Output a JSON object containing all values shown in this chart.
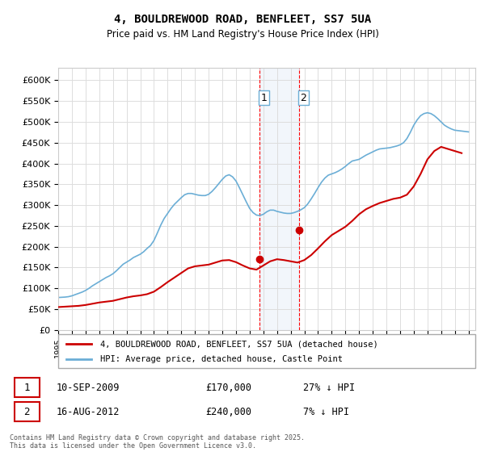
{
  "title": "4, BOULDREWOOD ROAD, BENFLEET, SS7 5UA",
  "subtitle": "Price paid vs. HM Land Registry's House Price Index (HPI)",
  "ylabel_values": [
    0,
    50000,
    100000,
    150000,
    200000,
    250000,
    300000,
    350000,
    400000,
    450000,
    500000,
    550000,
    600000
  ],
  "ylim": [
    0,
    630000
  ],
  "xlim_start": 1995.0,
  "xlim_end": 2025.5,
  "legend_line1": "4, BOULDREWOOD ROAD, BENFLEET, SS7 5UA (detached house)",
  "legend_line2": "HPI: Average price, detached house, Castle Point",
  "hpi_color": "#6baed6",
  "price_color": "#cc0000",
  "marker1_date": 2009.7,
  "marker1_price": 170000,
  "marker1_label": "1",
  "marker1_text": "10-SEP-2009",
  "marker1_price_text": "£170,000",
  "marker1_hpi_text": "27% ↓ HPI",
  "marker2_date": 2012.6,
  "marker2_price": 240000,
  "marker2_label": "2",
  "marker2_text": "16-AUG-2012",
  "marker2_price_text": "£240,000",
  "marker2_hpi_text": "7% ↓ HPI",
  "shade_x1": 2009.7,
  "shade_x2": 2012.6,
  "footer": "Contains HM Land Registry data © Crown copyright and database right 2025.\nThis data is licensed under the Open Government Licence v3.0.",
  "hpi_data": {
    "years": [
      1995.0,
      1995.25,
      1995.5,
      1995.75,
      1996.0,
      1996.25,
      1996.5,
      1996.75,
      1997.0,
      1997.25,
      1997.5,
      1997.75,
      1998.0,
      1998.25,
      1998.5,
      1998.75,
      1999.0,
      1999.25,
      1999.5,
      1999.75,
      2000.0,
      2000.25,
      2000.5,
      2000.75,
      2001.0,
      2001.25,
      2001.5,
      2001.75,
      2002.0,
      2002.25,
      2002.5,
      2002.75,
      2003.0,
      2003.25,
      2003.5,
      2003.75,
      2004.0,
      2004.25,
      2004.5,
      2004.75,
      2005.0,
      2005.25,
      2005.5,
      2005.75,
      2006.0,
      2006.25,
      2006.5,
      2006.75,
      2007.0,
      2007.25,
      2007.5,
      2007.75,
      2008.0,
      2008.25,
      2008.5,
      2008.75,
      2009.0,
      2009.25,
      2009.5,
      2009.75,
      2010.0,
      2010.25,
      2010.5,
      2010.75,
      2011.0,
      2011.25,
      2011.5,
      2011.75,
      2012.0,
      2012.25,
      2012.5,
      2012.75,
      2013.0,
      2013.25,
      2013.5,
      2013.75,
      2014.0,
      2014.25,
      2014.5,
      2014.75,
      2015.0,
      2015.25,
      2015.5,
      2015.75,
      2016.0,
      2016.25,
      2016.5,
      2016.75,
      2017.0,
      2017.25,
      2017.5,
      2017.75,
      2018.0,
      2018.25,
      2018.5,
      2018.75,
      2019.0,
      2019.25,
      2019.5,
      2019.75,
      2020.0,
      2020.25,
      2020.5,
      2020.75,
      2021.0,
      2021.25,
      2021.5,
      2021.75,
      2022.0,
      2022.25,
      2022.5,
      2022.75,
      2023.0,
      2023.25,
      2023.5,
      2023.75,
      2024.0,
      2024.25,
      2024.5,
      2024.75,
      2025.0
    ],
    "values": [
      78000,
      78500,
      79000,
      80000,
      82000,
      85000,
      88000,
      91000,
      95000,
      100000,
      106000,
      111000,
      116000,
      121000,
      126000,
      130000,
      135000,
      142000,
      150000,
      158000,
      163000,
      168000,
      174000,
      178000,
      182000,
      188000,
      196000,
      203000,
      215000,
      233000,
      252000,
      268000,
      280000,
      292000,
      302000,
      310000,
      318000,
      325000,
      328000,
      328000,
      326000,
      324000,
      323000,
      323000,
      326000,
      333000,
      342000,
      352000,
      362000,
      370000,
      373000,
      368000,
      358000,
      342000,
      325000,
      308000,
      292000,
      282000,
      276000,
      275000,
      278000,
      284000,
      288000,
      288000,
      285000,
      283000,
      281000,
      280000,
      280000,
      282000,
      285000,
      289000,
      294000,
      303000,
      315000,
      328000,
      342000,
      355000,
      365000,
      372000,
      375000,
      378000,
      382000,
      387000,
      393000,
      400000,
      406000,
      408000,
      410000,
      415000,
      420000,
      424000,
      428000,
      432000,
      435000,
      436000,
      437000,
      438000,
      440000,
      442000,
      445000,
      450000,
      460000,
      475000,
      492000,
      505000,
      515000,
      520000,
      522000,
      520000,
      515000,
      508000,
      500000,
      492000,
      487000,
      483000,
      480000,
      479000,
      478000,
      477000,
      476000
    ]
  },
  "price_data": {
    "years": [
      1995.0,
      1995.5,
      1996.0,
      1996.5,
      1997.0,
      1997.5,
      1998.0,
      1998.5,
      1999.0,
      1999.5,
      2000.0,
      2000.5,
      2001.0,
      2001.5,
      2002.0,
      2002.5,
      2003.0,
      2003.5,
      2004.0,
      2004.5,
      2005.0,
      2005.5,
      2006.0,
      2006.5,
      2007.0,
      2007.5,
      2008.0,
      2008.5,
      2009.0,
      2009.5,
      2010.0,
      2010.5,
      2011.0,
      2011.5,
      2012.0,
      2012.5,
      2013.0,
      2013.5,
      2014.0,
      2014.5,
      2015.0,
      2015.5,
      2016.0,
      2016.5,
      2017.0,
      2017.5,
      2018.0,
      2018.5,
      2019.0,
      2019.5,
      2020.0,
      2020.5,
      2021.0,
      2021.5,
      2022.0,
      2022.5,
      2023.0,
      2023.5,
      2024.0,
      2024.5
    ],
    "values": [
      55000,
      56000,
      57000,
      58000,
      60000,
      63000,
      66000,
      68000,
      70000,
      74000,
      78000,
      81000,
      83000,
      86000,
      92000,
      103000,
      115000,
      126000,
      137000,
      148000,
      153000,
      155000,
      157000,
      162000,
      167000,
      168000,
      163000,
      155000,
      148000,
      145000,
      155000,
      165000,
      170000,
      168000,
      165000,
      162000,
      168000,
      180000,
      196000,
      213000,
      228000,
      238000,
      248000,
      262000,
      278000,
      290000,
      298000,
      305000,
      310000,
      315000,
      318000,
      325000,
      345000,
      375000,
      410000,
      430000,
      440000,
      435000,
      430000,
      425000
    ]
  }
}
